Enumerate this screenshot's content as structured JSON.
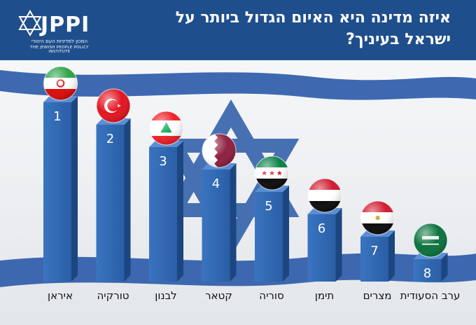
{
  "header": {
    "title": "איזה מדינה היא האיום הגדול ביותר על ישראל בעיניך?",
    "logo": "JPPI",
    "logo_subtitle_he": "המכון למדיניות העם היהודי",
    "logo_subtitle_en": "THE JEWISH PEOPLE POLICY INSTITUTE"
  },
  "colors": {
    "header_bg": "#1f4e8c",
    "bar_front": "#2f68b4",
    "flag_blue": "#2a5aa8"
  },
  "chart_data": {
    "type": "bar",
    "categories": [
      "איראן",
      "טורקיה",
      "לבנון",
      "קטאר",
      "סוריה",
      "תימן",
      "מצרים",
      "ערב הסעודית"
    ],
    "values": [
      1,
      2,
      3,
      4,
      5,
      6,
      7,
      8
    ],
    "flag_icons": [
      "iran-flag-icon",
      "turkey-flag-icon",
      "lebanon-flag-icon",
      "qatar-flag-icon",
      "syria-flag-icon",
      "yemen-flag-icon",
      "egypt-flag-icon",
      "saudi-arabia-flag-icon"
    ],
    "title": "איזה מדינה היא האיום הגדול ביותר על ישראל בעיניך?",
    "xlabel": "",
    "ylabel": ""
  }
}
